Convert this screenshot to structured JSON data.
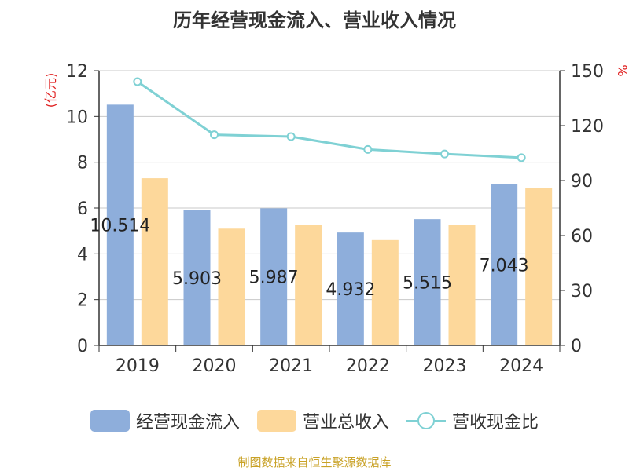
{
  "title": "历年经营现金流入、营业收入情况",
  "source": "制图数据来自恒生聚源数据库",
  "chart_data": {
    "type": "bar",
    "categories": [
      "2019",
      "2020",
      "2021",
      "2022",
      "2023",
      "2024"
    ],
    "y_left": {
      "label": "(亿元)",
      "min": 0,
      "max": 12,
      "ticks": [
        0,
        2,
        4,
        6,
        8,
        10,
        12
      ]
    },
    "y_right": {
      "label": "%",
      "min": 0,
      "max": 150,
      "ticks": [
        0,
        30,
        60,
        90,
        120,
        150
      ]
    },
    "series": [
      {
        "name": "经营现金流入",
        "type": "bar",
        "axis": "left",
        "color": "#8eaedb",
        "values": [
          10.514,
          5.903,
          5.987,
          4.932,
          5.515,
          7.043
        ]
      },
      {
        "name": "营业总收入",
        "type": "bar",
        "axis": "left",
        "color": "#fdd89b",
        "values": [
          7.3,
          5.1,
          5.25,
          4.6,
          5.28,
          6.88
        ]
      },
      {
        "name": "营收现金比",
        "type": "line",
        "axis": "right",
        "color": "#7fd1d4",
        "values": [
          144,
          115,
          114,
          107,
          104.5,
          102.5
        ]
      }
    ],
    "data_labels": [
      "10.514",
      "5.903",
      "5.987",
      "4.932",
      "5.515",
      "7.043"
    ],
    "grid": true,
    "legend_position": "bottom"
  }
}
